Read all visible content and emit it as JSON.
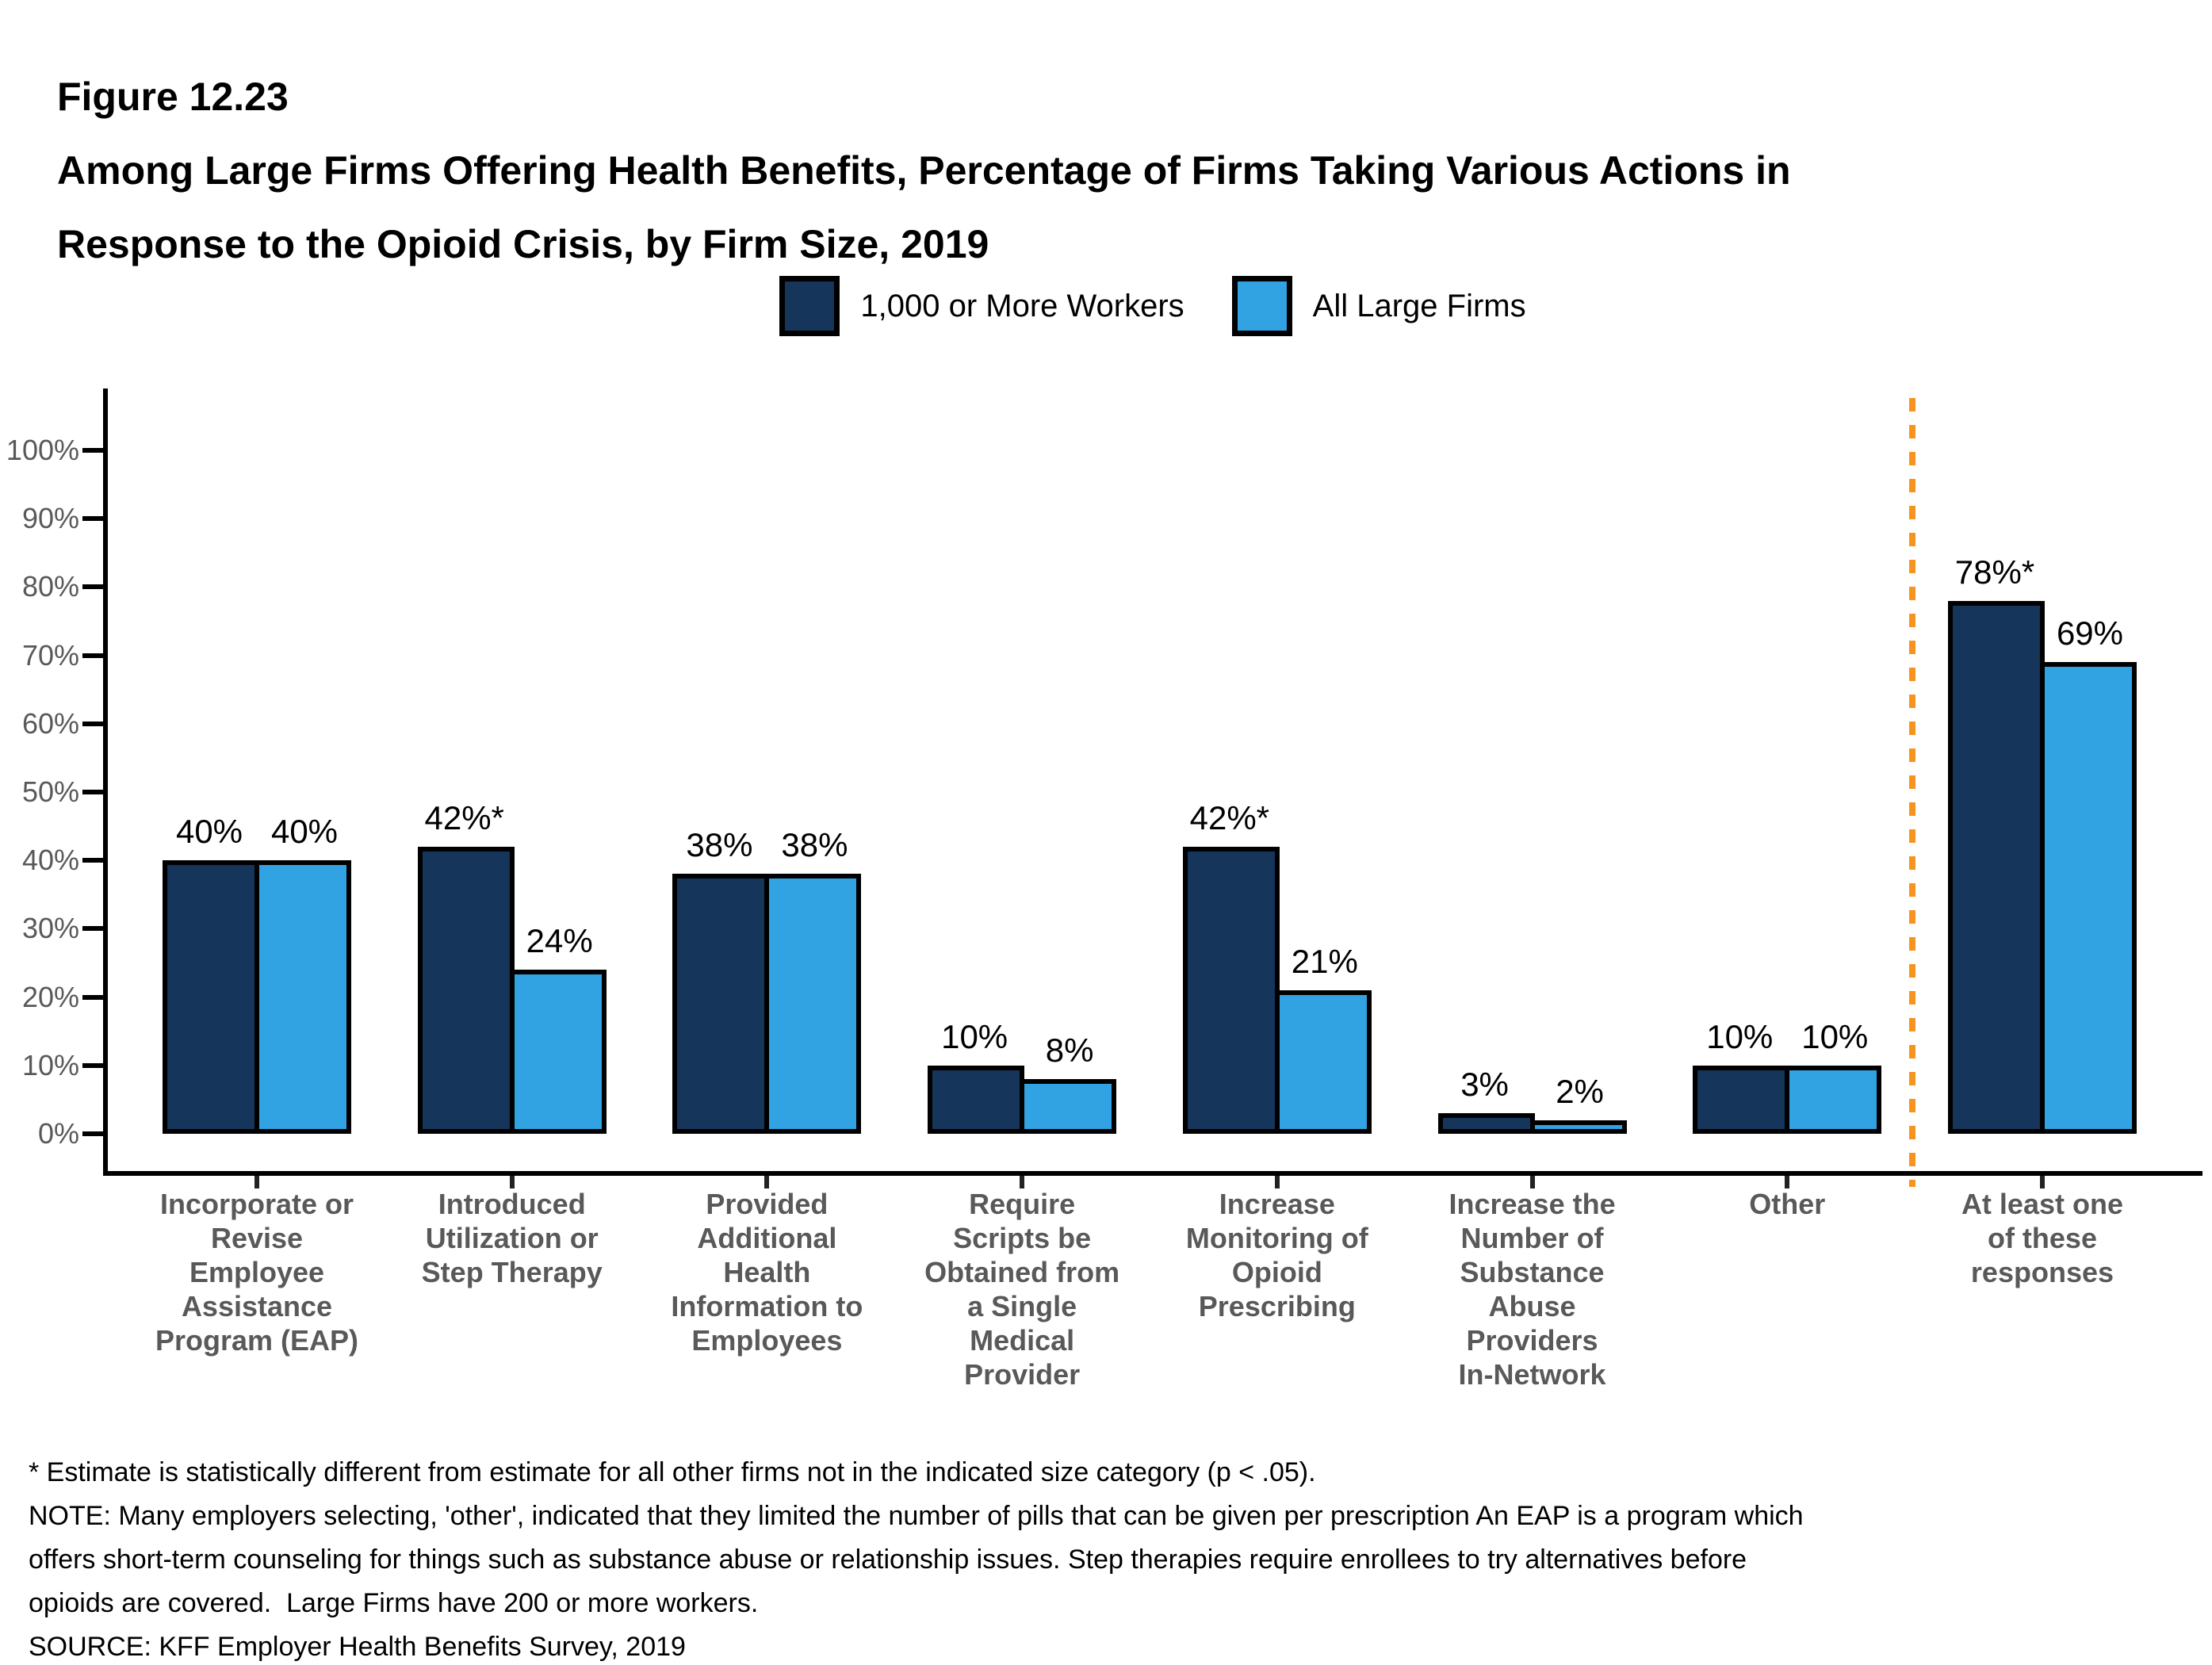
{
  "figure": {
    "label": "Figure 12.23",
    "title_line1": "Among Large Firms Offering Health Benefits, Percentage of Firms Taking Various Actions in",
    "title_line2": "Response to the Opioid Crisis, by Firm Size, 2019"
  },
  "legend": [
    {
      "label": "1,000 or More Workers",
      "color": "#15355A"
    },
    {
      "label": "All Large Firms",
      "color": "#32A3E2"
    }
  ],
  "chart_data": {
    "type": "bar",
    "title": "Among Large Firms Offering Health Benefits, Percentage of Firms Taking Various Actions in Response to the Opioid Crisis, by Firm Size, 2019",
    "categories": [
      [
        "Incorporate or",
        "Revise",
        "Employee",
        "Assistance",
        "Program (EAP)"
      ],
      [
        "Introduced",
        "Utilization or",
        "Step Therapy"
      ],
      [
        "Provided",
        "Additional",
        "Health",
        "Information to",
        "Employees"
      ],
      [
        "Require",
        "Scripts be",
        "Obtained from",
        "a Single",
        "Medical",
        "Provider"
      ],
      [
        "Increase",
        "Monitoring of",
        "Opioid",
        "Prescribing"
      ],
      [
        "Increase the",
        "Number of",
        "Substance",
        "Abuse",
        "Providers",
        "In-Network"
      ],
      [
        "Other"
      ],
      [
        "At least one",
        "of these",
        "responses"
      ]
    ],
    "series": [
      {
        "name": "1,000 or More Workers",
        "color": "#15355A",
        "values": [
          40,
          42,
          38,
          10,
          42,
          3,
          10,
          78
        ],
        "labels": [
          "40%",
          "42%*",
          "38%",
          "10%",
          "42%*",
          "3%",
          "10%",
          "78%*"
        ]
      },
      {
        "name": "All Large Firms",
        "color": "#32A3E2",
        "values": [
          40,
          24,
          38,
          8,
          21,
          2,
          10,
          69
        ],
        "labels": [
          "40%",
          "24%",
          "38%",
          "8%",
          "21%",
          "2%",
          "10%",
          "69%"
        ]
      }
    ],
    "yticks": [
      "0%",
      "10%",
      "20%",
      "30%",
      "40%",
      "50%",
      "60%",
      "70%",
      "80%",
      "90%",
      "100%"
    ],
    "ylim": [
      0,
      100
    ],
    "grid": false,
    "legend_position": "top-center",
    "separator": {
      "after_category_index": 6,
      "style": "dashed",
      "color": "#F7941E"
    }
  },
  "footnotes": {
    "lines": [
      "* Estimate is statistically different from estimate for all other firms not in the indicated size category (p < .05).",
      "NOTE: Many employers selecting, 'other', indicated that they limited the number of pills that can be given per prescription An EAP is a program which",
      "offers short-term counseling for things such as substance abuse or relationship issues. Step therapies require enrollees to try alternatives before",
      "opioids are covered.  Large Firms have 200 or more workers.",
      "SOURCE: KFF Employer Health Benefits Survey, 2019"
    ]
  },
  "colors": {
    "axis": "#000000",
    "tick_label": "#595959",
    "category_label": "#595959",
    "value_label": "#000000",
    "separator": "#F7941E",
    "background": "#FFFFFF"
  }
}
